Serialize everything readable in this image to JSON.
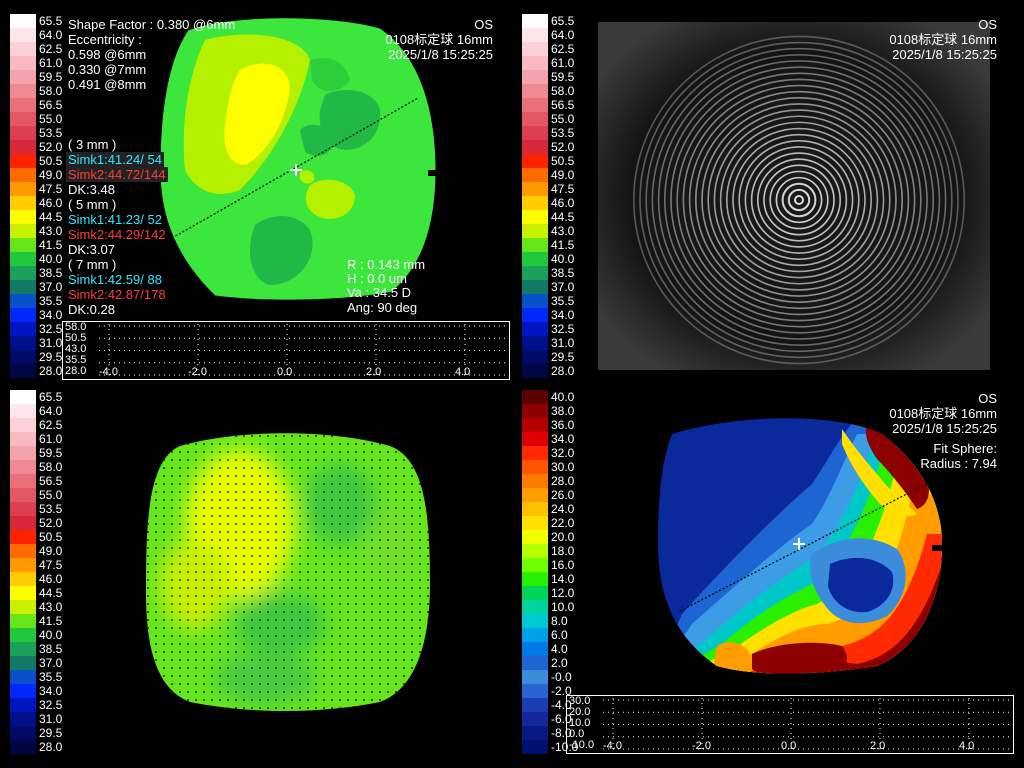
{
  "scales": {
    "axial": {
      "labels": [
        "65.5",
        "64.0",
        "62.5",
        "61.0",
        "59.5",
        "58.0",
        "56.5",
        "55.0",
        "53.5",
        "52.0",
        "50.5",
        "49.0",
        "47.5",
        "46.0",
        "44.5",
        "43.0",
        "41.5",
        "40.0",
        "38.5",
        "37.0",
        "35.5",
        "34.0",
        "32.5",
        "31.0",
        "29.5",
        "28.0"
      ],
      "colors": [
        "#ffffff",
        "#fde6ea",
        "#fbd0d6",
        "#f8b9c1",
        "#f4a2ac",
        "#ee8994",
        "#e9707b",
        "#e35866",
        "#dc4050",
        "#d6283a",
        "#ff2200",
        "#ff6a00",
        "#ff9900",
        "#ffcc00",
        "#ffff00",
        "#c8f000",
        "#66e61a",
        "#22c83c",
        "#1aa05a",
        "#137864",
        "#0a50c8",
        "#0028ff",
        "#0014c0",
        "#000f8c",
        "#000a64",
        "#000544"
      ]
    },
    "elevation": {
      "labels": [
        "40.0",
        "38.0",
        "36.0",
        "34.0",
        "32.0",
        "30.0",
        "28.0",
        "26.0",
        "24.0",
        "22.0",
        "20.0",
        "18.0",
        "16.0",
        "14.0",
        "12.0",
        "10.0",
        "8.0",
        "6.0",
        "4.0",
        "2.0",
        "-0.0",
        "-2.0",
        "-4.0",
        "-6.0",
        "-8.0",
        "-10.0"
      ],
      "colors": [
        "#5a0000",
        "#8c0000",
        "#b40000",
        "#dc0000",
        "#ff2a00",
        "#ff5500",
        "#ff7a00",
        "#ff9d00",
        "#ffc000",
        "#ffe000",
        "#f0ff00",
        "#b4ff00",
        "#6eff00",
        "#28f000",
        "#00d25a",
        "#00d2a0",
        "#00c8d2",
        "#00a0e6",
        "#0078e6",
        "#1e64d2",
        "#3c8cdc",
        "#2864d2",
        "#1e3cb4",
        "#14289b",
        "#0a1882",
        "#00106e"
      ]
    }
  },
  "panel_axial": {
    "shape_factor": "Shape Factor : 0.380 @6mm",
    "eccentricity_label": "Eccentricity :",
    "ecc_6": "0.598 @6mm",
    "ecc_7": "0.330 @7mm",
    "ecc_8": "0.491 @8mm",
    "eye": "OS",
    "device": "0108标定球 16mm",
    "datetime": "2025/1/8 15:25:25",
    "zone3_title": "( 3 mm )",
    "zone3_simk1": "Simk1:41.24/ 54",
    "zone3_simk2": "Simk2:44.72/144",
    "zone3_dk": "DK:3.48",
    "zone5_title": "( 5 mm )",
    "zone5_simk1": "Simk1:41.23/ 52",
    "zone5_simk2": "Simk2:44.29/142",
    "zone5_dk": "DK:3.07",
    "zone7_title": "( 7 mm )",
    "zone7_simk1": "Simk1:42.59/ 88",
    "zone7_simk2": "Simk2:42.87/178",
    "zone7_dk": "DK:0.28",
    "cursor_r": "R   :  0.143 mm",
    "cursor_h": "H   :  0.0 um",
    "cursor_va": "Va :   34.5 D",
    "cursor_ang": "Ang:  90 deg",
    "profile_y_labels": [
      "58.0",
      "50.5",
      "43.0",
      "35.5",
      "28.0"
    ],
    "profile_x_labels": [
      "-4.0",
      "-2.0",
      "0.0",
      "2.0",
      "4.0"
    ]
  },
  "panel_rings": {
    "eye": "OS",
    "device": "0108标定球 16mm",
    "datetime": "2025/1/8 15:25:25"
  },
  "panel_elevation": {
    "eye": "OS",
    "device": "0108标定球 16mm",
    "datetime": "2025/1/8 15:25:25",
    "fit_sphere": "Fit Sphere:",
    "radius": "Radius : 7.94",
    "profile_y_labels": [
      "30.0",
      "20.0",
      "10.0",
      "0.0",
      "-10.0"
    ],
    "profile_x_labels": [
      "-4.0",
      "-2.0",
      "0.0",
      "2.0",
      "4.0"
    ]
  }
}
